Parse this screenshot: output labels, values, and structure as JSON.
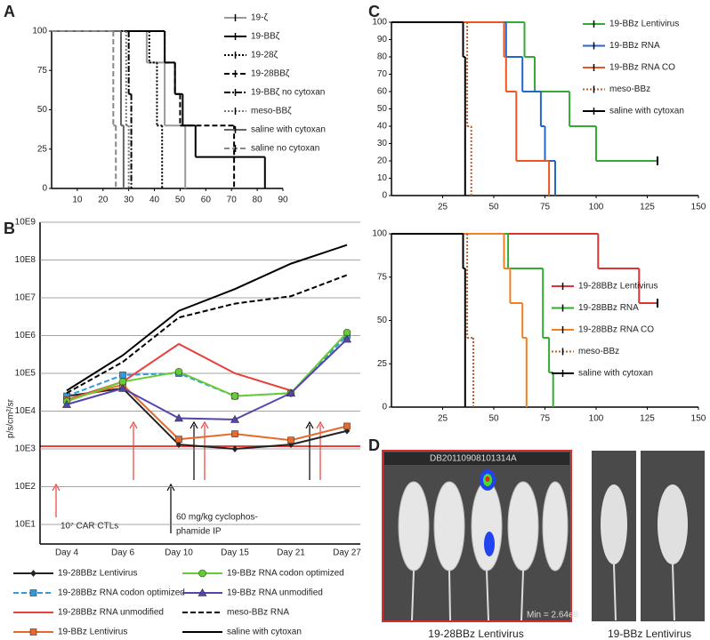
{
  "chart_data": [
    {
      "type": "step",
      "panel": "A",
      "xlim": [
        0,
        90
      ],
      "xticks": [
        10,
        20,
        30,
        40,
        50,
        60,
        70,
        80,
        90
      ],
      "ylim": [
        0,
        100
      ],
      "yticks": [
        0,
        25,
        50,
        75,
        100
      ],
      "grid": false,
      "series": [
        {
          "name": "19-ζ",
          "color": "#999999",
          "line_style": "solid",
          "x": [
            0,
            37,
            44,
            52
          ],
          "values": [
            100,
            80,
            40,
            0
          ]
        },
        {
          "name": "19-BBζ",
          "color": "#000000",
          "line_style": "solid",
          "x": [
            0,
            44,
            48,
            51,
            56,
            83
          ],
          "values": [
            100,
            80,
            60,
            40,
            20,
            0
          ]
        },
        {
          "name": "19-28ζ",
          "color": "#000000",
          "line_style": "dotted",
          "x": [
            0,
            38,
            41,
            43
          ],
          "values": [
            100,
            80,
            40,
            0
          ]
        },
        {
          "name": "19-28BBζ",
          "color": "#000000",
          "line_style": "dashed",
          "x": [
            0,
            44,
            48,
            50,
            71
          ],
          "values": [
            100,
            80,
            60,
            40,
            0
          ]
        },
        {
          "name": "19-BBζ no cytoxan",
          "color": "#000000",
          "line_style": "dashdot",
          "x": [
            0,
            30,
            31
          ],
          "values": [
            100,
            60,
            0
          ]
        },
        {
          "name": "meso-BBζ",
          "color": "#777777",
          "line_style": "dotted",
          "x": [
            0,
            29,
            30
          ],
          "values": [
            100,
            40,
            0
          ]
        },
        {
          "name": "saline with cytoxan",
          "color": "#666666",
          "line_style": "solid",
          "x": [
            0,
            27,
            28
          ],
          "values": [
            100,
            40,
            0
          ]
        },
        {
          "name": "saline no cytoxan",
          "color": "#888888",
          "line_style": "dashed",
          "x": [
            0,
            24,
            25
          ],
          "values": [
            100,
            40,
            0
          ]
        }
      ]
    },
    {
      "type": "line",
      "panel": "B",
      "yscale": "log",
      "y_label": "p/s/cm²/sr",
      "grid": true,
      "categories": [
        "Day 4",
        "Day 6",
        "Day 10",
        "Day 15",
        "Day 21",
        "Day 27"
      ],
      "ylim": [
        10,
        1000000000
      ],
      "yticks": [
        {
          "value": 10,
          "label": "10E1"
        },
        {
          "value": 100,
          "label": "10E2"
        },
        {
          "value": 1000,
          "label": "10E3"
        },
        {
          "value": 10000,
          "label": "10E4"
        },
        {
          "value": 100000,
          "label": "10E5"
        },
        {
          "value": 1000000,
          "label": "10E6"
        },
        {
          "value": 10000000,
          "label": "10E7"
        },
        {
          "value": 100000000,
          "label": "10E8"
        },
        {
          "value": 1000000000,
          "label": "10E9"
        }
      ],
      "annotations": [
        "10⁷ CAR CTLs",
        "60 mg/kg cyclophos-",
        "phamide IP"
      ],
      "series": [
        {
          "name": "19-28BBz Lentivirus",
          "color": "#222222",
          "line_style": "solid",
          "marker": "diamond",
          "values": [
            25000,
            40000,
            1300,
            1000,
            1300,
            3000
          ]
        },
        {
          "name": "19-28BBz RNA codon optimized",
          "color": "#3399dd",
          "line_style": "dashed",
          "marker": "square",
          "values": [
            25000,
            90000,
            100000,
            25000,
            30000,
            1000000
          ]
        },
        {
          "name": "19-28BBz RNA unmodified",
          "color": "#e8403a",
          "line_style": "solid",
          "marker": null,
          "values": [
            20000,
            60000,
            600000,
            100000,
            35000,
            null
          ]
        },
        {
          "name": "19-BBz Lentivirus",
          "color": "#e8692c",
          "line_style": "solid",
          "marker": "square",
          "values": [
            20000,
            50000,
            1800,
            2500,
            1700,
            4000
          ]
        },
        {
          "name": "19-BBz RNA codon optimized",
          "color": "#66cc33",
          "line_style": "solid",
          "marker": "circle",
          "values": [
            18000,
            60000,
            110000,
            25000,
            30000,
            1200000
          ]
        },
        {
          "name": "19-BBz RNA unmodified",
          "color": "#5544aa",
          "line_style": "solid",
          "marker": "triangle",
          "values": [
            15000,
            40000,
            6500,
            6000,
            30000,
            800000
          ]
        },
        {
          "name": "meso-BBz RNA",
          "color": "#000000",
          "line_style": "dashed",
          "marker": null,
          "values": [
            30000,
            200000,
            3000000,
            7000000,
            11000000,
            40000000
          ]
        },
        {
          "name": "saline with cytoxan",
          "color": "#000000",
          "line_style": "solid",
          "marker": null,
          "values": [
            35000,
            300000,
            4500000,
            17000000,
            80000000,
            250000000
          ]
        }
      ]
    },
    {
      "type": "step",
      "panel": "C",
      "xlim": [
        0,
        150
      ],
      "xticks": [
        25,
        50,
        75,
        100,
        125,
        150
      ],
      "ylim": [
        0,
        100
      ],
      "yticks": [
        0,
        10,
        20,
        30,
        40,
        50,
        60,
        70,
        80,
        90,
        100
      ],
      "grid": false,
      "series": [
        {
          "name": "19-BBz Lentivirus",
          "color": "#33aa33",
          "line_style": "solid",
          "x": [
            0,
            65,
            70,
            87,
            100,
            130
          ],
          "values": [
            100,
            80,
            60,
            40,
            20,
            20
          ]
        },
        {
          "name": "19-BBz RNA",
          "color": "#2266cc",
          "line_style": "solid",
          "x": [
            0,
            56,
            64,
            73,
            75,
            80
          ],
          "values": [
            100,
            80,
            60,
            40,
            20,
            0
          ]
        },
        {
          "name": "19-BBz RNA CO",
          "color": "#ee5522",
          "line_style": "solid",
          "x": [
            0,
            55,
            56,
            61,
            77
          ],
          "values": [
            100,
            80,
            60,
            20,
            0
          ]
        },
        {
          "name": "meso-BBz",
          "color": "#c0602a",
          "line_style": "dotted",
          "x": [
            0,
            37,
            39
          ],
          "values": [
            100,
            40,
            0
          ]
        },
        {
          "name": "saline with cytoxan",
          "color": "#000000",
          "line_style": "solid",
          "x": [
            0,
            35,
            36
          ],
          "values": [
            100,
            80,
            0
          ]
        }
      ]
    },
    {
      "type": "step",
      "xlim": [
        0,
        150
      ],
      "xticks": [
        25,
        50,
        75,
        100,
        125,
        150
      ],
      "ylim": [
        0,
        100
      ],
      "yticks": [
        0,
        25,
        50,
        75,
        100
      ],
      "grid": false,
      "series": [
        {
          "name": "19-28BBz Lentivirus",
          "color": "#dd3333",
          "line_style": "solid",
          "x": [
            0,
            101,
            121,
            130
          ],
          "values": [
            100,
            80,
            60,
            60
          ]
        },
        {
          "name": "19-28BBz RNA",
          "color": "#33aa33",
          "line_style": "solid",
          "x": [
            0,
            57,
            74,
            77,
            79
          ],
          "values": [
            100,
            80,
            40,
            20,
            0
          ]
        },
        {
          "name": "19-28BBz RNA CO",
          "color": "#f08020",
          "line_style": "solid",
          "x": [
            0,
            55,
            58,
            64,
            66
          ],
          "values": [
            100,
            80,
            60,
            40,
            0
          ]
        },
        {
          "name": "meso-BBz",
          "color": "#c0602a",
          "line_style": "dotted",
          "x": [
            0,
            37,
            40
          ],
          "values": [
            100,
            40,
            0
          ]
        },
        {
          "name": "saline with cytoxan",
          "color": "#000000",
          "line_style": "solid",
          "x": [
            0,
            35,
            36
          ],
          "values": [
            100,
            80,
            0
          ]
        }
      ]
    }
  ],
  "panel_d": {
    "label": "D",
    "left_image": {
      "header": "DB20110908101314A",
      "footer": "Min = 2.64e8",
      "caption": "19-28BBz Lentivirus"
    },
    "right_image": {
      "caption": "19-BBz Lentivirus"
    }
  }
}
